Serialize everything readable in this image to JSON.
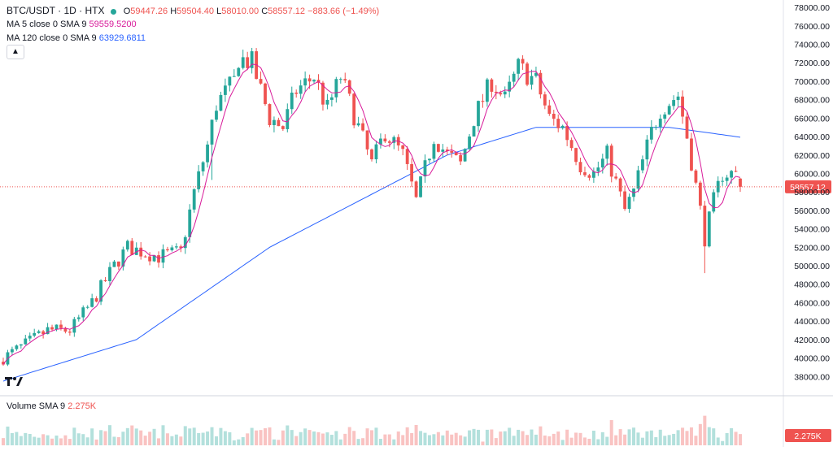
{
  "header": {
    "symbol": "BTC/USDT · 1D · HTX",
    "o_label": "O",
    "o_value": "59447.26",
    "h_label": "H",
    "h_value": "59504.40",
    "l_label": "L",
    "l_value": "58010.00",
    "c_label": "C",
    "c_value": "58557.12",
    "change": "−883.66 (−1.49%)",
    "ma5_label": "MA 5 close 0 SMA 9",
    "ma5_value": "59559.5200",
    "ma120_label": "MA 120 close 0 SMA 9",
    "ma120_value": "63929.6811",
    "collapse_icon": "chevron-up-icon"
  },
  "volume_legend": {
    "label": "Volume SMA 9",
    "value": "2.275K",
    "badge": "2.275K"
  },
  "price_badge": "58557.12",
  "colors": {
    "up": "#26a69a",
    "down": "#ef5350",
    "ma5": "#d81b9a",
    "ma120": "#2962ff",
    "grid": "#f0f3fa",
    "last": "#ef5350"
  },
  "chart_data": {
    "type": "candlestick",
    "y_axis_ticks": [
      "78000.00",
      "76000.00",
      "74000.00",
      "72000.00",
      "70000.00",
      "68000.00",
      "66000.00",
      "64000.00",
      "62000.00",
      "60000.00",
      "58000.00",
      "56000.00",
      "54000.00",
      "52000.00",
      "50000.00",
      "48000.00",
      "46000.00",
      "44000.00",
      "42000.00",
      "40000.00",
      "38000.00"
    ],
    "ylim": [
      36000,
      78800
    ],
    "last_price": 58557.12,
    "anchors": [
      [
        0,
        40000
      ],
      [
        5,
        41500
      ],
      [
        10,
        43000
      ],
      [
        15,
        43000
      ],
      [
        20,
        46000
      ],
      [
        25,
        50000
      ],
      [
        28,
        52000
      ],
      [
        35,
        51000
      ],
      [
        40,
        51500
      ],
      [
        43,
        58000
      ],
      [
        46,
        63000
      ],
      [
        48,
        67500
      ],
      [
        52,
        70000
      ],
      [
        53,
        72500
      ],
      [
        56,
        72000
      ],
      [
        60,
        66000
      ],
      [
        63,
        65000
      ],
      [
        66,
        69000
      ],
      [
        70,
        70500
      ],
      [
        73,
        67000
      ],
      [
        76,
        70500
      ],
      [
        80,
        65000
      ],
      [
        83,
        61000
      ],
      [
        86,
        64500
      ],
      [
        90,
        62000
      ],
      [
        93,
        57000
      ],
      [
        97,
        64000
      ],
      [
        100,
        62000
      ],
      [
        103,
        61000
      ],
      [
        106,
        66000
      ],
      [
        110,
        70000
      ],
      [
        113,
        68000
      ],
      [
        116,
        71500
      ],
      [
        120,
        70000
      ],
      [
        123,
        66000
      ],
      [
        126,
        65000
      ],
      [
        130,
        61000
      ],
      [
        133,
        60000
      ],
      [
        136,
        62000
      ],
      [
        140,
        56000
      ],
      [
        142,
        58000
      ],
      [
        146,
        64500
      ],
      [
        148,
        67000
      ],
      [
        152,
        68500
      ],
      [
        154,
        64000
      ],
      [
        157,
        56000
      ],
      [
        158,
        53000
      ],
      [
        160,
        57000
      ],
      [
        162,
        60000
      ],
      [
        165,
        60000
      ],
      [
        166,
        58557
      ]
    ],
    "ma120_anchors": [
      [
        0,
        37500
      ],
      [
        30,
        42000
      ],
      [
        60,
        52000
      ],
      [
        80,
        57000
      ],
      [
        100,
        62000
      ],
      [
        120,
        65000
      ],
      [
        150,
        65000
      ],
      [
        166,
        63929
      ]
    ]
  }
}
